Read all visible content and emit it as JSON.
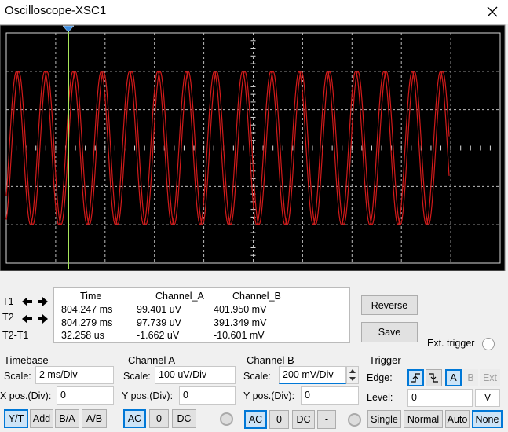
{
  "window": {
    "title": "Oscilloscope-XSC1"
  },
  "readout": {
    "columns": [
      "Time",
      "Channel_A",
      "Channel_B"
    ],
    "rows": [
      {
        "label": "T1",
        "values": [
          "804.247 ms",
          "99.401 uV",
          "401.950 mV"
        ]
      },
      {
        "label": "T2",
        "values": [
          "804.279 ms",
          "97.739 uV",
          "391.349 mV"
        ]
      },
      {
        "label": "T2-T1",
        "values": [
          "32.258 us",
          "-1.662 uV",
          "-10.601 mV"
        ]
      }
    ]
  },
  "actions": {
    "reverse": "Reverse",
    "save": "Save",
    "ext_trigger": "Ext. trigger"
  },
  "timebase": {
    "title": "Timebase",
    "scale_label": "Scale:",
    "scale": "2 ms/Div",
    "xpos_label": "X pos.(Div):",
    "xpos": "0",
    "modes": [
      "Y/T",
      "Add",
      "B/A",
      "A/B"
    ],
    "selected": "Y/T"
  },
  "channel_a": {
    "title": "Channel A",
    "scale_label": "Scale:",
    "scale": "100 uV/Div",
    "ypos_label": "Y pos.(Div):",
    "ypos": "0",
    "coupling": [
      "AC",
      "0",
      "DC"
    ],
    "selected": "AC"
  },
  "channel_b": {
    "title": "Channel B",
    "scale_label": "Scale:",
    "scale": "200 mV/Div",
    "ypos_label": "Y pos.(Div):",
    "ypos": "0",
    "coupling": [
      "AC",
      "0",
      "DC",
      "-"
    ],
    "selected": "AC"
  },
  "trigger": {
    "title": "Trigger",
    "edge_label": "Edge:",
    "sources": [
      "A",
      "B",
      "Ext"
    ],
    "selected_source": "A",
    "level_label": "Level:",
    "level": "0",
    "level_unit": "V",
    "modes": [
      "Single",
      "Normal",
      "Auto",
      "None"
    ],
    "selected_mode": "None"
  }
}
